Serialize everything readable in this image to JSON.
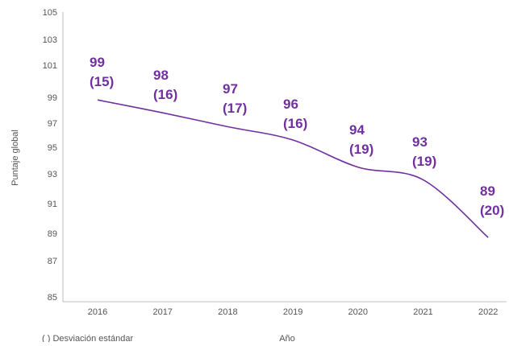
{
  "chart_data": {
    "type": "line",
    "title": "",
    "xlabel": "Año",
    "ylabel": "Puntaje global",
    "ylim": [
      85,
      105
    ],
    "y_ticks": [
      "85",
      "87",
      "89",
      "91",
      "93",
      "95",
      "97",
      "99",
      "101",
      "103",
      "105"
    ],
    "categories": [
      "2016",
      "2017",
      "2018",
      "2019",
      "2020",
      "2021",
      "2022"
    ],
    "series": [
      {
        "values": [
          98.8,
          97.8,
          96.7,
          95.6,
          93.5,
          92.6,
          88.7
        ],
        "labels": [
          "99",
          "98",
          "97",
          "96",
          "94",
          "93",
          "89"
        ],
        "std_labels": [
          "(15)",
          "(16)",
          "(17)",
          "(16)",
          "(19)",
          "(19)",
          "(20)"
        ],
        "color": "#7030a0"
      }
    ],
    "note": "( ) Desviación estándar",
    "grid": false
  }
}
